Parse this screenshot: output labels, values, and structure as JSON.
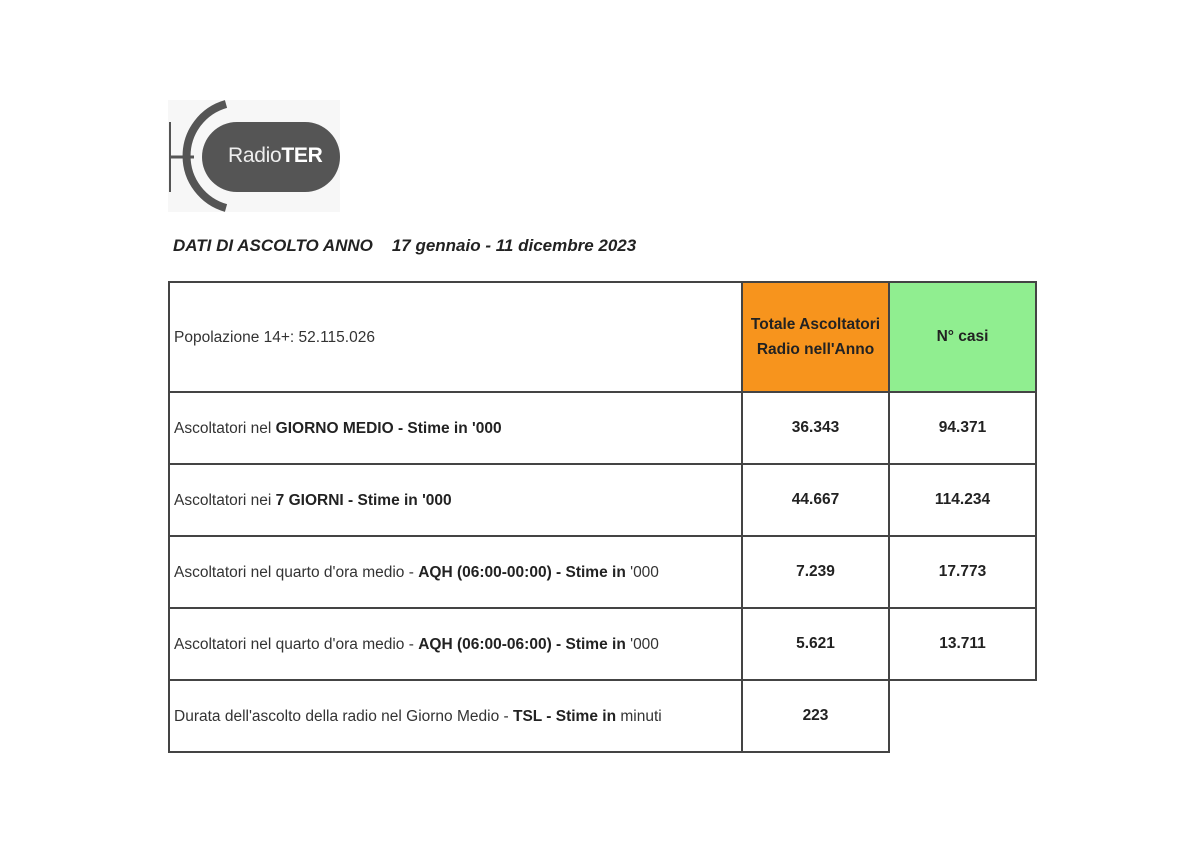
{
  "logo": {
    "text_light": "Radio",
    "text_bold": "TER"
  },
  "title": {
    "label": "DATI DI ASCOLTO ANNO",
    "period": "17 gennaio - 11 dicembre 2023"
  },
  "table": {
    "population": "Popolazione 14+: 52.115.026",
    "col1_header": "Totale Ascoltatori Radio nell'Anno",
    "col2_header": "N° casi",
    "colors": {
      "col1_header_bg": "#f7941d",
      "col2_header_bg": "#90ee90"
    },
    "rows": [
      {
        "pre": "Ascoltatori nel ",
        "bold": "GIORNO MEDIO - Stime in '000",
        "post": "",
        "total": "36.343",
        "cases": "94.371"
      },
      {
        "pre": "Ascoltatori nei ",
        "bold": "7 GIORNI - Stime in '000",
        "post": "",
        "total": "44.667",
        "cases": "114.234"
      },
      {
        "pre": "Ascoltatori nel quarto d'ora medio - ",
        "bold": "AQH (06:00-00:00) - Stime in",
        "post": " '000",
        "total": "7.239",
        "cases": "17.773"
      },
      {
        "pre": "Ascoltatori nel quarto d'ora medio - ",
        "bold": "AQH (06:00-06:00) - Stime in",
        "post": " '000",
        "total": "5.621",
        "cases": "13.711"
      },
      {
        "pre": "Durata dell'ascolto della radio nel Giorno Medio - ",
        "bold": "TSL - Stime in",
        "post": " minuti",
        "total": "223",
        "cases": ""
      }
    ]
  }
}
